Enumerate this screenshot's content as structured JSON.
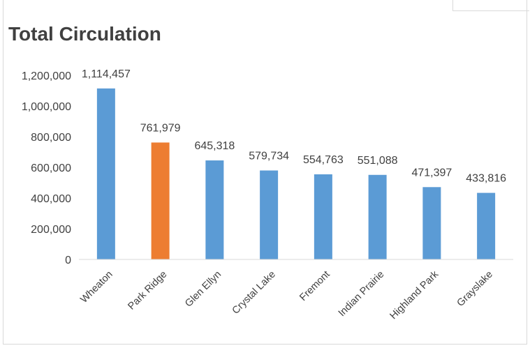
{
  "chart_data": {
    "type": "bar",
    "title": "Total Circulation",
    "xlabel": "",
    "ylabel": "",
    "categories": [
      "Wheaton",
      "Park Ridge",
      "Glen Ellyn",
      "Crystal Lake",
      "Fremont",
      "Indian Prairie",
      "Highland Park",
      "Grayslake"
    ],
    "values": [
      1114457,
      761979,
      645318,
      579734,
      554763,
      551088,
      471397,
      433816
    ],
    "data_labels": [
      "1,114,457",
      "761,979",
      "645,318",
      "579,734",
      "554,763",
      "551,088",
      "471,397",
      "433,816"
    ],
    "highlight_category": "Park Ridge",
    "colors": {
      "bar": "#5b9bd5",
      "highlight": "#ed7d31",
      "axis": "#d9d9d9",
      "text": "#404040"
    },
    "ylim": [
      0,
      1200000
    ],
    "yticks": [
      0,
      200000,
      400000,
      600000,
      800000,
      1000000,
      1200000
    ],
    "ytick_labels": [
      "0",
      "200,000",
      "400,000",
      "600,000",
      "800,000",
      "1,000,000",
      "1,200,000"
    ],
    "grid": false,
    "legend": "none"
  }
}
